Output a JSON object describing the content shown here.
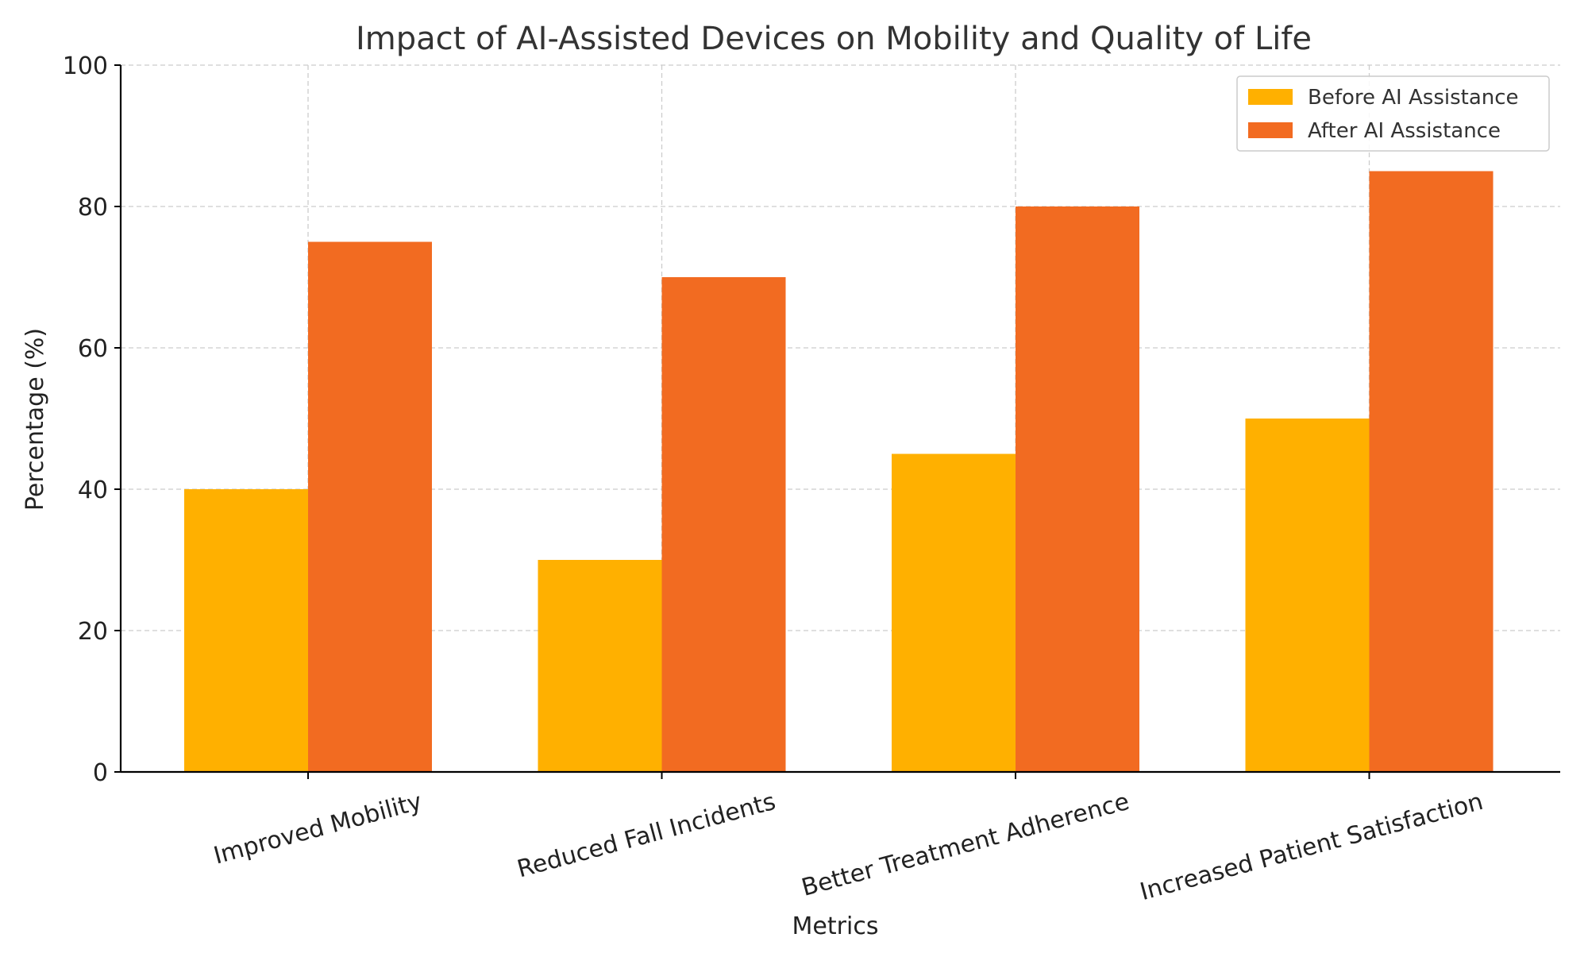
{
  "chart_data": {
    "type": "bar",
    "title": "Impact of AI-Assisted Devices on Mobility and Quality of Life",
    "xlabel": "Metrics",
    "ylabel": "Percentage (%)",
    "categories": [
      "Improved Mobility",
      "Reduced Fall Incidents",
      "Better Treatment Adherence",
      "Increased Patient Satisfaction"
    ],
    "series": [
      {
        "name": "Before AI Assistance",
        "color": "#FFB000",
        "values": [
          40,
          30,
          45,
          50
        ]
      },
      {
        "name": "After AI Assistance",
        "color": "#F26B21",
        "values": [
          75,
          70,
          80,
          85
        ]
      }
    ],
    "ylim": [
      0,
      100
    ],
    "yticks": [
      "0",
      "20",
      "40",
      "60",
      "80",
      "100"
    ],
    "grid": true,
    "legend_position": "top-right"
  }
}
